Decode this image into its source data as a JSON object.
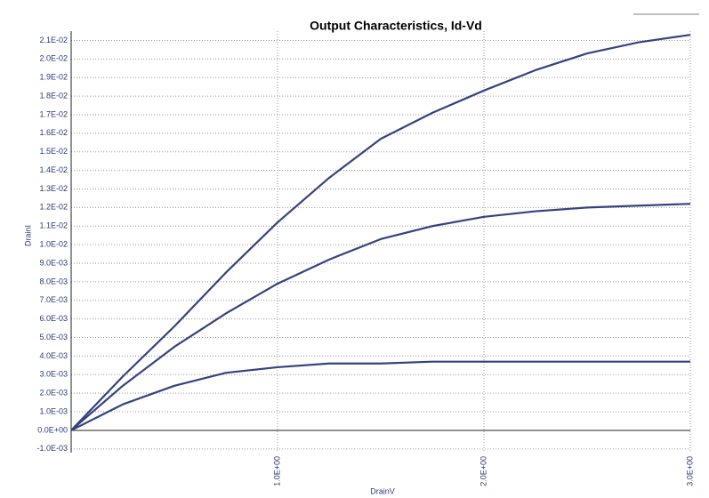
{
  "chart_data": {
    "type": "line",
    "title": "Output Characteristics, Id-Vd",
    "x_label": "DrainV",
    "y_label": "DrainI",
    "x": [
      0,
      0.25,
      0.5,
      0.75,
      1.0,
      1.25,
      1.5,
      1.75,
      2.0,
      2.25,
      2.5,
      2.75,
      3.0
    ],
    "series": [
      {
        "color": "#34437f",
        "values": [
          0,
          0.0029,
          0.0056,
          0.0085,
          0.0112,
          0.0136,
          0.0157,
          0.0171,
          0.0183,
          0.0194,
          0.0203,
          0.0209,
          0.0213
        ]
      },
      {
        "color": "#34437f",
        "values": [
          0,
          0.0024,
          0.0045,
          0.0063,
          0.0079,
          0.0092,
          0.0103,
          0.011,
          0.0115,
          0.0118,
          0.012,
          0.0121,
          0.0122
        ]
      },
      {
        "color": "#34437f",
        "values": [
          0,
          0.0014,
          0.0024,
          0.0031,
          0.0034,
          0.0036,
          0.0036,
          0.0037,
          0.0037,
          0.0037,
          0.0037,
          0.0037,
          0.0037
        ]
      }
    ],
    "xlim": [
      0,
      3
    ],
    "ylim": [
      -0.0012,
      0.0215
    ],
    "xticks": [
      {
        "value": 1,
        "label": "1.0E+00"
      },
      {
        "value": 2,
        "label": "2.0E+00"
      },
      {
        "value": 3,
        "label": "3.0E+00"
      }
    ],
    "yticks": [
      {
        "value": -0.001,
        "label": "-1.0E-03"
      },
      {
        "value": 0,
        "label": "0.0E+00"
      },
      {
        "value": 0.001,
        "label": "1.0E-03"
      },
      {
        "value": 0.002,
        "label": "2.0E-03"
      },
      {
        "value": 0.003,
        "label": "3.0E-03"
      },
      {
        "value": 0.004,
        "label": "4.0E-03"
      },
      {
        "value": 0.005,
        "label": "5.0E-03"
      },
      {
        "value": 0.006,
        "label": "6.0E-03"
      },
      {
        "value": 0.007,
        "label": "7.0E-03"
      },
      {
        "value": 0.008,
        "label": "8.0E-03"
      },
      {
        "value": 0.009,
        "label": "9.0E-03"
      },
      {
        "value": 0.01,
        "label": "1.0E-02"
      },
      {
        "value": 0.011,
        "label": "1.1E-02"
      },
      {
        "value": 0.012,
        "label": "1.2E-02"
      },
      {
        "value": 0.013,
        "label": "1.3E-02"
      },
      {
        "value": 0.014,
        "label": "1.4E-02"
      },
      {
        "value": 0.015,
        "label": "1.5E-02"
      },
      {
        "value": 0.016,
        "label": "1.6E-02"
      },
      {
        "value": 0.017,
        "label": "1.7E-02"
      },
      {
        "value": 0.018,
        "label": "1.8E-02"
      },
      {
        "value": 0.019,
        "label": "1.9E-02"
      },
      {
        "value": 0.02,
        "label": "2.0E-02"
      },
      {
        "value": 0.021,
        "label": "2.1E-02"
      }
    ],
    "grid": true
  }
}
